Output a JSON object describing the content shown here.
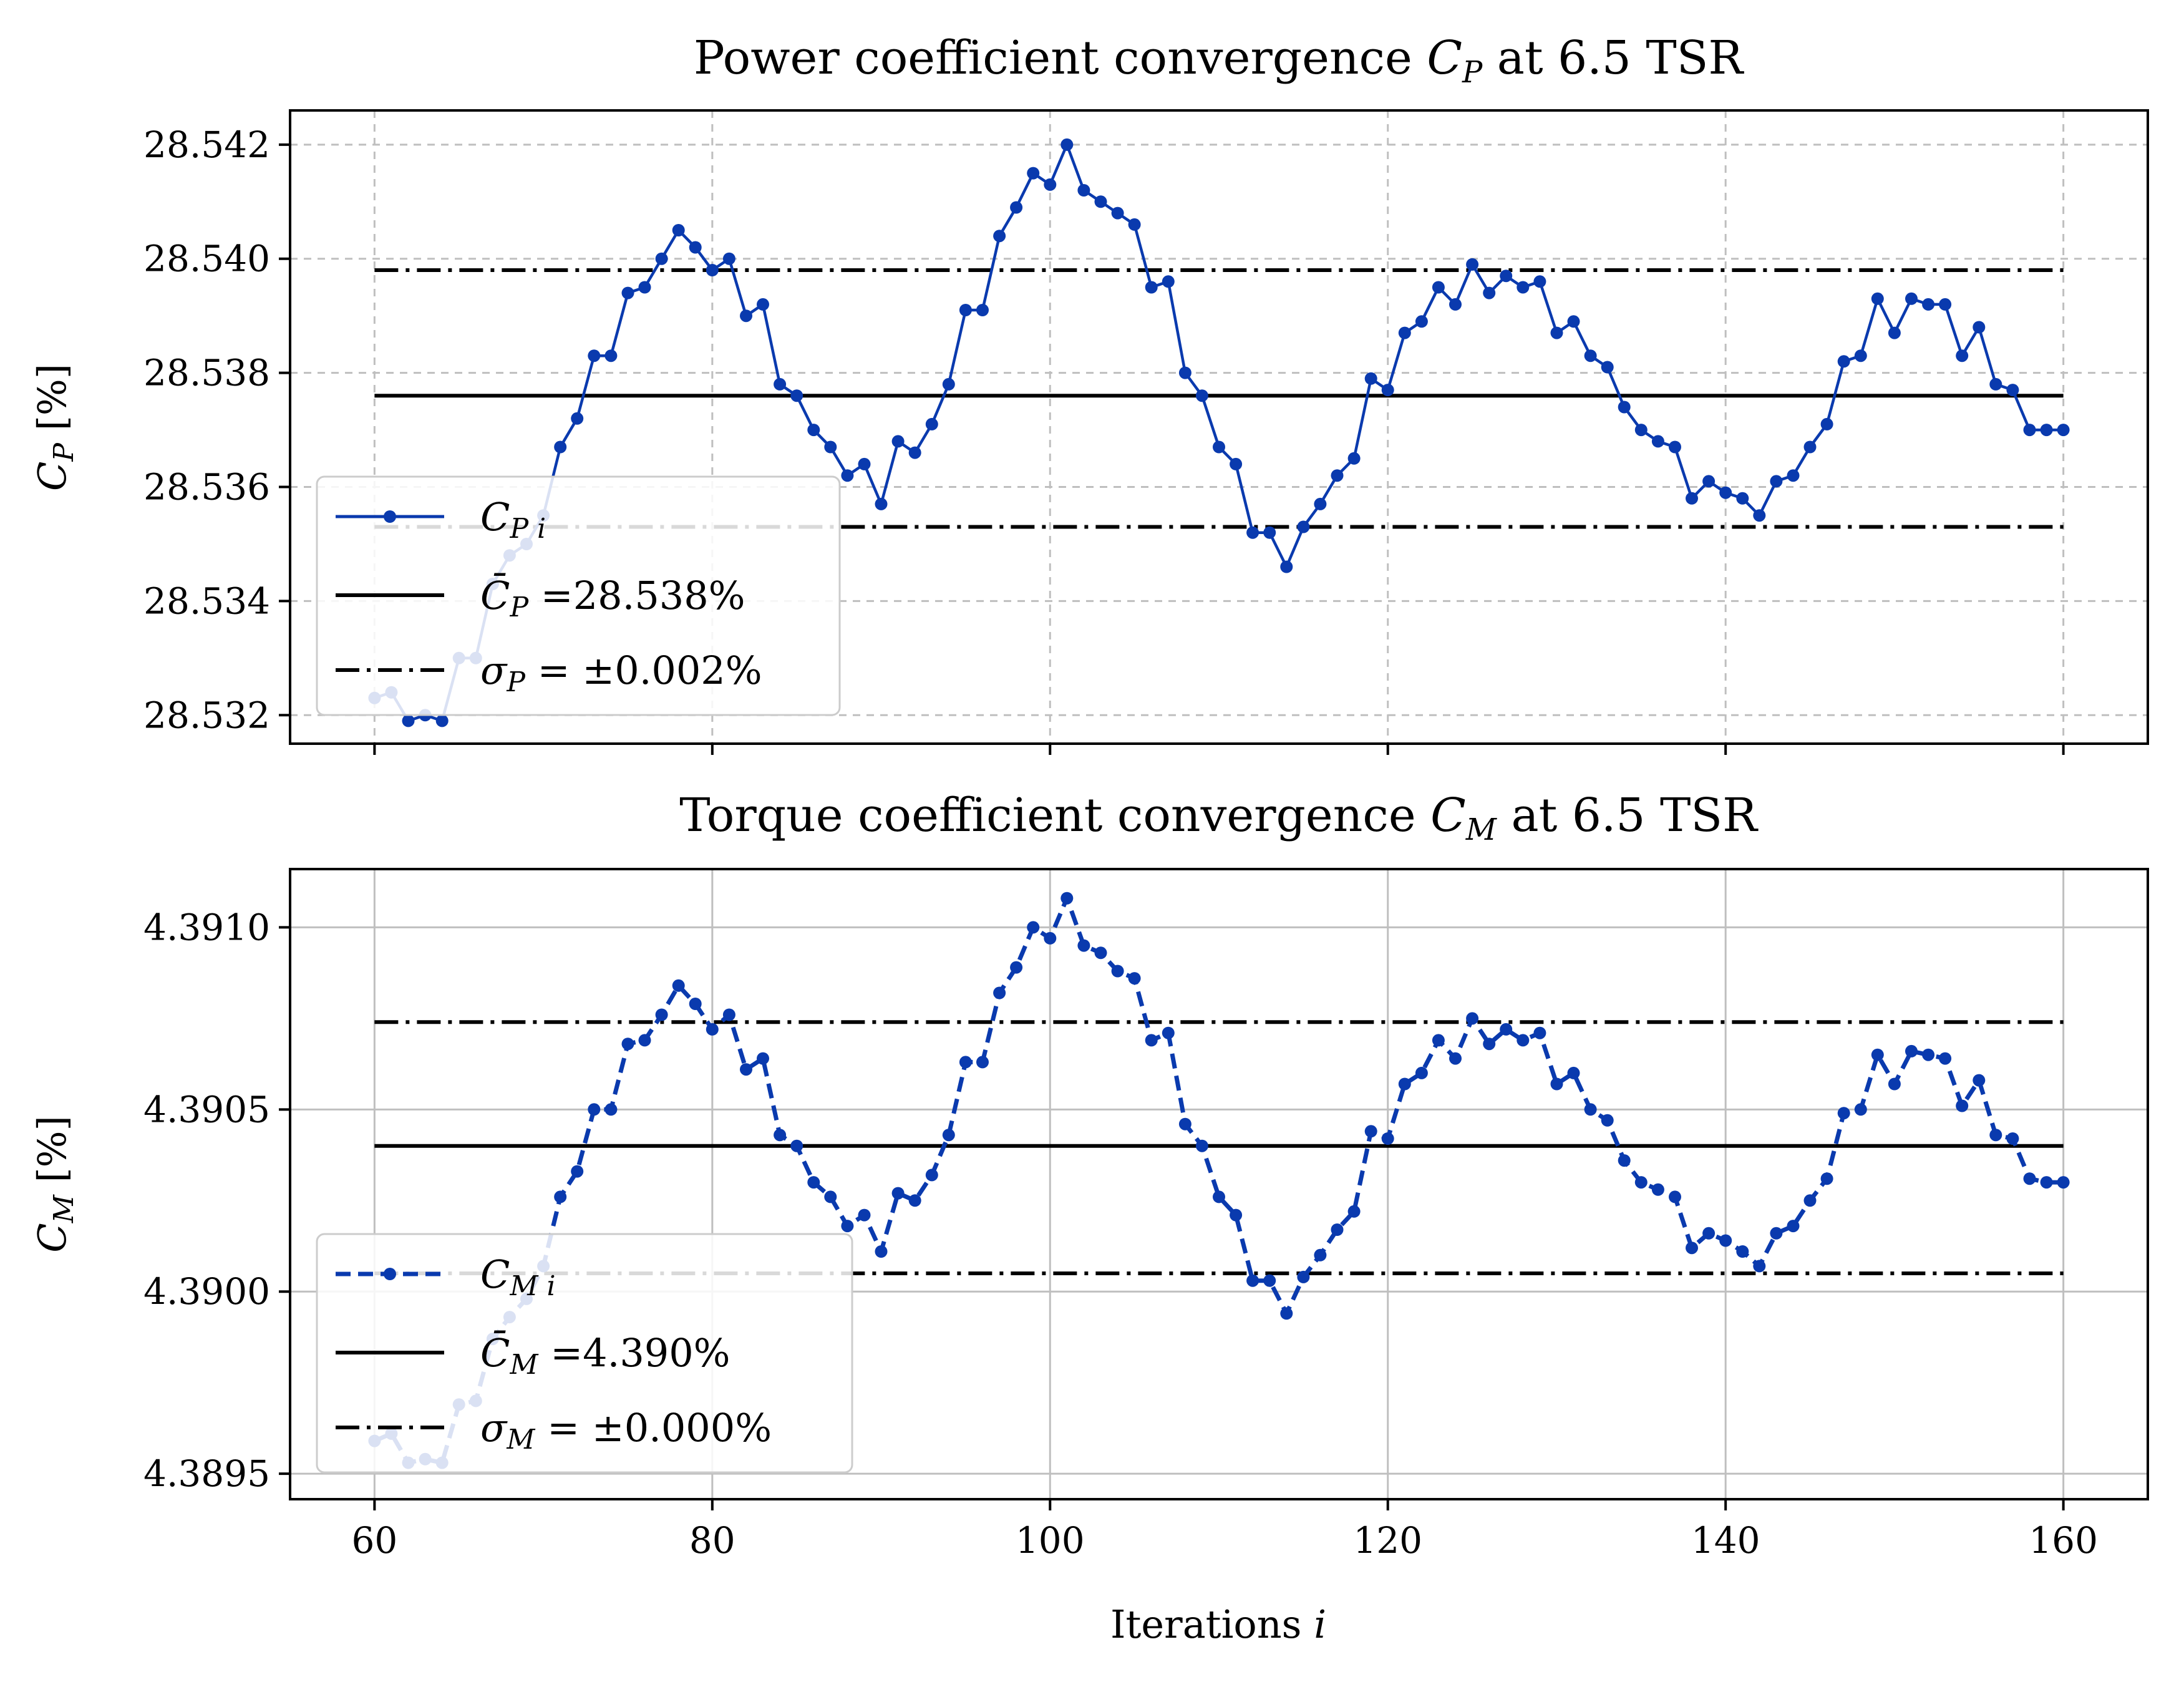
{
  "colors": {
    "series": "#0A3AAE",
    "reference": "#000000",
    "grid": "#bfbfbf"
  },
  "chart_data": [
    {
      "type": "line",
      "title": "Power coefficient convergence C_P at 6.5 TSR",
      "ylabel": "C_P [%]",
      "xlabel": "",
      "xlim": [
        55,
        165
      ],
      "ylim": [
        28.5315,
        28.5426
      ],
      "xticks": [
        60,
        80,
        100,
        120,
        140,
        160
      ],
      "xtick_labels_shown": false,
      "yticks": [
        28.532,
        28.534,
        28.536,
        28.538,
        28.54,
        28.542
      ],
      "ytick_labels": [
        "28.532",
        "28.534",
        "28.536",
        "28.538",
        "28.540",
        "28.542"
      ],
      "grid": "dashed",
      "legend_position": "lower-left",
      "series": [
        {
          "name": "C_{P i}",
          "style": "solid-dots",
          "x": [
            60,
            61,
            62,
            63,
            64,
            65,
            66,
            67,
            68,
            69,
            70,
            71,
            72,
            73,
            74,
            75,
            76,
            77,
            78,
            79,
            80,
            81,
            82,
            83,
            84,
            85,
            86,
            87,
            88,
            89,
            90,
            91,
            92,
            93,
            94,
            95,
            96,
            97,
            98,
            99,
            100,
            101,
            102,
            103,
            104,
            105,
            106,
            107,
            108,
            109,
            110,
            111,
            112,
            113,
            114,
            115,
            116,
            117,
            118,
            119,
            120,
            121,
            122,
            123,
            124,
            125,
            126,
            127,
            128,
            129,
            130,
            131,
            132,
            133,
            134,
            135,
            136,
            137,
            138,
            139,
            140,
            141,
            142,
            143,
            144,
            145,
            146,
            147,
            148,
            149,
            150,
            151,
            152,
            153,
            154,
            155,
            156,
            157,
            158,
            159,
            160
          ],
          "y": [
            28.5323,
            28.5324,
            28.5319,
            28.532,
            28.5319,
            28.533,
            28.533,
            28.5343,
            28.5348,
            28.535,
            28.5355,
            28.5367,
            28.5372,
            28.5383,
            28.5383,
            28.5394,
            28.5395,
            28.54,
            28.5405,
            28.5402,
            28.5398,
            28.54,
            28.539,
            28.5392,
            28.5378,
            28.5376,
            28.537,
            28.5367,
            28.5362,
            28.5364,
            28.5357,
            28.5368,
            28.5366,
            28.5371,
            28.5378,
            28.5391,
            28.5391,
            28.5404,
            28.5409,
            28.5415,
            28.5413,
            28.542,
            28.5412,
            28.541,
            28.5408,
            28.5406,
            28.5395,
            28.5396,
            28.538,
            28.5376,
            28.5367,
            28.5364,
            28.5352,
            28.5352,
            28.5346,
            28.5353,
            28.5357,
            28.5362,
            28.5365,
            28.5379,
            28.5377,
            28.5387,
            28.5389,
            28.5395,
            28.5392,
            28.5399,
            28.5394,
            28.5397,
            28.5395,
            28.5396,
            28.5387,
            28.5389,
            28.5383,
            28.5381,
            28.5374,
            28.537,
            28.5368,
            28.5367,
            28.5358,
            28.5361,
            28.5359,
            28.5358,
            28.5355,
            28.5361,
            28.5362,
            28.5367,
            28.5371,
            28.5382,
            28.5383,
            28.5393,
            28.5387,
            28.5393,
            28.5392,
            28.5392,
            28.5383,
            28.5388,
            28.5378,
            28.5377,
            28.537,
            28.537,
            28.537
          ]
        },
        {
          "name": "C̄_P =28.538%",
          "style": "solid",
          "x": [
            60,
            160
          ],
          "y": [
            28.5376,
            28.5376
          ]
        },
        {
          "name": "σ_P = ±0.002%",
          "style": "dashdot",
          "x": [
            60,
            160
          ],
          "y": [
            28.5398,
            28.5353
          ]
        }
      ]
    },
    {
      "type": "line",
      "title": "Torque coefficient convergence C_M at 6.5 TSR",
      "ylabel": "C_M [%]",
      "xlabel": "Iterations i",
      "xlim": [
        55,
        165
      ],
      "ylim": [
        4.38943,
        4.39116
      ],
      "xticks": [
        60,
        80,
        100,
        120,
        140,
        160
      ],
      "xtick_labels": [
        "60",
        "80",
        "100",
        "120",
        "140",
        "160"
      ],
      "yticks": [
        4.3895,
        4.39,
        4.3905,
        4.391
      ],
      "ytick_labels": [
        "4.3895",
        "4.3900",
        "4.3905",
        "4.3910"
      ],
      "grid": "solid",
      "legend_position": "lower-left",
      "series": [
        {
          "name": "C_{M i}",
          "style": "dashed-dots",
          "x": [
            60,
            61,
            62,
            63,
            64,
            65,
            66,
            67,
            68,
            69,
            70,
            71,
            72,
            73,
            74,
            75,
            76,
            77,
            78,
            79,
            80,
            81,
            82,
            83,
            84,
            85,
            86,
            87,
            88,
            89,
            90,
            91,
            92,
            93,
            94,
            95,
            96,
            97,
            98,
            99,
            100,
            101,
            102,
            103,
            104,
            105,
            106,
            107,
            108,
            109,
            110,
            111,
            112,
            113,
            114,
            115,
            116,
            117,
            118,
            119,
            120,
            121,
            122,
            123,
            124,
            125,
            126,
            127,
            128,
            129,
            130,
            131,
            132,
            133,
            134,
            135,
            136,
            137,
            138,
            139,
            140,
            141,
            142,
            143,
            144,
            145,
            146,
            147,
            148,
            149,
            150,
            151,
            152,
            153,
            154,
            155,
            156,
            157,
            158,
            159,
            160
          ],
          "y": [
            4.38959,
            4.38961,
            4.38953,
            4.38954,
            4.38953,
            4.38969,
            4.3897,
            4.38987,
            4.38993,
            4.38998,
            4.39007,
            4.39026,
            4.39033,
            4.3905,
            4.3905,
            4.39068,
            4.39069,
            4.39076,
            4.39084,
            4.39079,
            4.39072,
            4.39076,
            4.39061,
            4.39064,
            4.39043,
            4.3904,
            4.3903,
            4.39026,
            4.39018,
            4.39021,
            4.39011,
            4.39027,
            4.39025,
            4.39032,
            4.39043,
            4.39063,
            4.39063,
            4.39082,
            4.39089,
            4.391,
            4.39097,
            4.39108,
            4.39095,
            4.39093,
            4.39088,
            4.39086,
            4.39069,
            4.39071,
            4.39046,
            4.3904,
            4.39026,
            4.39021,
            4.39003,
            4.39003,
            4.38994,
            4.39004,
            4.3901,
            4.39017,
            4.39022,
            4.39044,
            4.39042,
            4.39057,
            4.3906,
            4.39069,
            4.39064,
            4.39075,
            4.39068,
            4.39072,
            4.39069,
            4.39071,
            4.39057,
            4.3906,
            4.3905,
            4.39047,
            4.39036,
            4.3903,
            4.39028,
            4.39026,
            4.39012,
            4.39016,
            4.39014,
            4.39011,
            4.39007,
            4.39016,
            4.39018,
            4.39025,
            4.39031,
            4.39049,
            4.3905,
            4.39065,
            4.39057,
            4.39066,
            4.39065,
            4.39064,
            4.39051,
            4.39058,
            4.39043,
            4.39042,
            4.39031,
            4.3903,
            4.3903
          ]
        },
        {
          "name": "C̄_M =4.390%",
          "style": "solid",
          "x": [
            60,
            160
          ],
          "y": [
            4.3904,
            4.3904
          ]
        },
        {
          "name": "σ_M = ±0.000%",
          "style": "dashdot",
          "x": [
            60,
            160
          ],
          "y": [
            4.39074,
            4.39005
          ]
        }
      ]
    }
  ]
}
